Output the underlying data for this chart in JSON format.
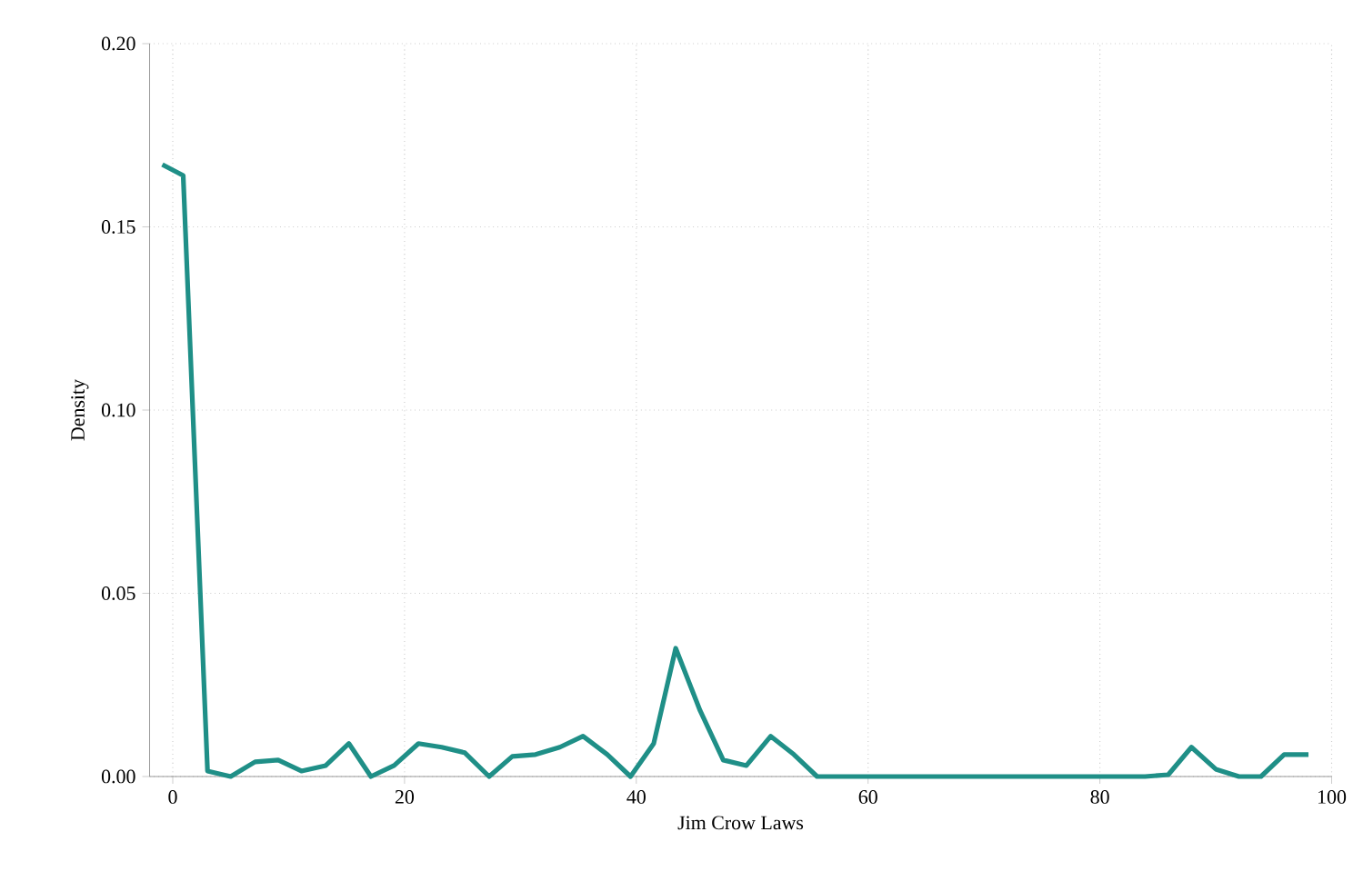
{
  "chart_data": {
    "type": "line",
    "xlabel": "Jim Crow Laws",
    "ylabel": "Density",
    "xlim": [
      -2,
      100
    ],
    "ylim": [
      0,
      0.2
    ],
    "xticks": [
      0,
      20,
      40,
      60,
      80,
      100
    ],
    "yticks": [
      {
        "value": 0,
        "label": "0.00"
      },
      {
        "value": 0.05,
        "label": "0.05"
      },
      {
        "value": 0.1,
        "label": "0.10"
      },
      {
        "value": 0.15,
        "label": "0.15"
      },
      {
        "value": 0.2,
        "label": "0.20"
      }
    ],
    "grid": true,
    "line_style": "solid",
    "marker": "none",
    "series": [
      {
        "color": "#1f8f87",
        "x": [
          -0.9,
          0.9,
          3.0,
          5.0,
          7.1,
          9.1,
          11.1,
          13.2,
          15.2,
          17.1,
          19.1,
          21.2,
          23.2,
          25.2,
          27.3,
          29.3,
          31.3,
          33.4,
          35.4,
          37.5,
          39.5,
          41.5,
          43.4,
          45.5,
          47.5,
          49.5,
          51.6,
          53.6,
          55.6,
          57.6,
          59.7,
          61.7,
          63.7,
          65.8,
          67.8,
          69.8,
          71.8,
          73.8,
          75.8,
          77.9,
          79.9,
          81.9,
          83.9,
          85.9,
          87.9,
          90.0,
          92.0,
          93.9,
          95.9,
          98.0
        ],
        "values": [
          0.167,
          0.164,
          0.0015,
          0.0,
          0.004,
          0.0045,
          0.0015,
          0.003,
          0.009,
          0.0,
          0.003,
          0.009,
          0.008,
          0.0065,
          0.0,
          0.0055,
          0.006,
          0.008,
          0.011,
          0.006,
          0.0,
          0.009,
          0.035,
          0.018,
          0.0045,
          0.003,
          0.011,
          0.006,
          0.0,
          0.0,
          0.0,
          0.0,
          0.0,
          0.0,
          0.0,
          0.0,
          0.0,
          0.0,
          0.0,
          0.0,
          0.0,
          0.0,
          0.0,
          0.0005,
          0.008,
          0.002,
          0.0,
          0.0,
          0.006,
          0.006
        ]
      }
    ]
  }
}
